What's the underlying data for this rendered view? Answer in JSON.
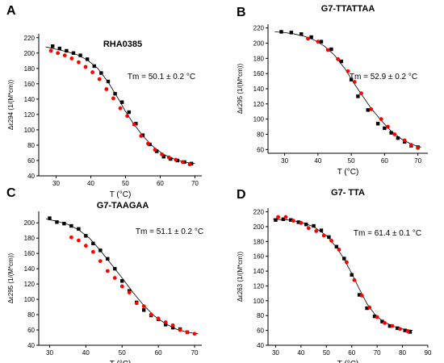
{
  "chart_data": [
    {
      "panel": "A",
      "type": "scatter",
      "title": "RHA0385",
      "xlabel": "T (°C)",
      "ylabel": "Δε294 (1/(M*cm))",
      "annotation": "Tm = 50.1 ± 0.2 °C",
      "xlim": [
        25,
        72
      ],
      "ylim": [
        40,
        225
      ],
      "xticks": [
        30,
        40,
        50,
        60,
        70
      ],
      "yticks": [
        40,
        60,
        80,
        100,
        120,
        140,
        160,
        180,
        200,
        220
      ],
      "series": [
        {
          "color": "#000000",
          "marker": "square",
          "x": [
            29,
            31,
            33,
            35,
            37,
            39,
            41,
            43,
            45,
            47,
            49,
            51,
            53,
            55,
            57,
            59,
            61,
            63,
            65,
            67,
            69
          ],
          "y": [
            209,
            206,
            203,
            200,
            197,
            192,
            183,
            174,
            163,
            147,
            136,
            123,
            108,
            93,
            81,
            72,
            65,
            62,
            60,
            58,
            56
          ]
        },
        {
          "color": "#ff0000",
          "marker": "circle",
          "x": [
            28.5,
            30.5,
            32.5,
            34.5,
            36.5,
            38.5,
            40.5,
            42.5,
            44.5,
            46.5,
            48.5,
            50.5,
            52.5,
            54.5,
            56.5,
            58.5,
            60.5,
            62.5,
            64.5,
            66.5,
            68.5
          ],
          "y": [
            203,
            200,
            197,
            193,
            188,
            182,
            175,
            166,
            153,
            141,
            128,
            118,
            107,
            92,
            82,
            74,
            68,
            64,
            61,
            58,
            55
          ]
        },
        {
          "color": "#000000",
          "marker": "line",
          "x": [
            27,
            30,
            33,
            36,
            39,
            42,
            45,
            48,
            50,
            52,
            55,
            58,
            61,
            64,
            67,
            70
          ],
          "y": [
            208,
            205,
            202,
            198,
            191,
            180,
            162,
            140,
            124,
            110,
            92,
            78,
            68,
            62,
            58,
            56
          ]
        }
      ]
    },
    {
      "panel": "B",
      "type": "scatter",
      "title": "G7-TTATTAA",
      "xlabel": "T (°C)",
      "ylabel": "Δε295 (1/(M*cm))",
      "annotation": "Tm = 52.9 ± 0.2 °C",
      "xlim": [
        25,
        73
      ],
      "ylim": [
        55,
        225
      ],
      "xticks": [
        30,
        40,
        50,
        60,
        70
      ],
      "yticks": [
        60,
        80,
        100,
        120,
        140,
        160,
        180,
        200,
        220
      ],
      "series": [
        {
          "color": "#000000",
          "marker": "square",
          "x": [
            29,
            32,
            35,
            38,
            41,
            44,
            47,
            50,
            52,
            55,
            58,
            60,
            62,
            64,
            66,
            68,
            70
          ],
          "y": [
            215,
            214,
            212,
            208,
            202,
            192,
            176,
            152,
            130,
            112,
            94,
            88,
            82,
            75,
            70,
            65,
            63
          ]
        },
        {
          "color": "#ff0000",
          "marker": "circle",
          "x": [
            37,
            40,
            43,
            46,
            49,
            51,
            53,
            56,
            59,
            61,
            63,
            66,
            68,
            70
          ],
          "y": [
            206,
            202,
            191,
            179,
            163,
            149,
            134,
            113,
            100,
            90,
            80,
            72,
            66,
            62
          ]
        },
        {
          "color": "#000000",
          "marker": "line",
          "x": [
            27,
            30,
            33,
            36,
            39,
            42,
            45,
            48,
            51,
            53,
            56,
            59,
            62,
            65,
            68,
            71
          ],
          "y": [
            215,
            214,
            212,
            209,
            204,
            196,
            184,
            167,
            146,
            133,
            114,
            98,
            84,
            74,
            67,
            63
          ]
        }
      ]
    },
    {
      "panel": "C",
      "type": "scatter",
      "title": "G7-TAAGAA",
      "xlabel": "T (°C)",
      "ylabel": "Δε295 (1/(M*cm))",
      "annotation": "Tm = 51.1 ± 0.2 °C",
      "xlim": [
        27,
        72
      ],
      "ylim": [
        40,
        215
      ],
      "xticks": [
        30,
        40,
        50,
        60,
        70
      ],
      "yticks": [
        40,
        60,
        80,
        100,
        120,
        140,
        160,
        180,
        200
      ],
      "series": [
        {
          "color": "#000000",
          "marker": "square",
          "x": [
            30,
            32,
            34,
            36,
            38,
            40,
            42,
            44,
            46,
            48,
            50,
            52,
            54,
            56,
            58,
            60,
            62,
            64,
            66,
            68
          ],
          "y": [
            206,
            201,
            199,
            196,
            192,
            183,
            173,
            164,
            153,
            140,
            124,
            111,
            96,
            86,
            79,
            74,
            67,
            63,
            61,
            57
          ]
        },
        {
          "color": "#ff0000",
          "marker": "circle",
          "x": [
            36,
            38,
            40,
            42,
            44,
            46,
            48,
            50,
            52,
            54,
            56,
            58,
            60,
            62,
            64,
            66,
            68,
            70
          ],
          "y": [
            181,
            177,
            170,
            162,
            150,
            137,
            128,
            117,
            109,
            95,
            91,
            80,
            75,
            70,
            66,
            60,
            57,
            55
          ]
        },
        {
          "color": "#000000",
          "marker": "line",
          "x": [
            29,
            32,
            35,
            38,
            41,
            44,
            47,
            50,
            53,
            56,
            59,
            62,
            65,
            68,
            71
          ],
          "y": [
            205,
            202,
            198,
            191,
            180,
            164,
            146,
            128,
            109,
            92,
            78,
            68,
            61,
            57,
            55
          ]
        }
      ]
    },
    {
      "panel": "D",
      "type": "scatter",
      "title": "G7- TTA",
      "xlabel": "T (°C)",
      "ylabel": "Δε263 (1/(M*cm))",
      "annotation": "Tm = 61.4 ± 0.1 °C",
      "xlim": [
        27,
        90
      ],
      "ylim": [
        40,
        225
      ],
      "xticks": [
        30,
        40,
        50,
        60,
        70,
        80,
        90
      ],
      "yticks": [
        40,
        60,
        80,
        100,
        120,
        140,
        160,
        180,
        200,
        220
      ],
      "series": [
        {
          "color": "#000000",
          "marker": "square",
          "x": [
            30,
            33,
            36,
            39,
            42,
            45,
            48,
            51,
            54,
            57,
            60,
            63,
            66,
            69,
            72,
            75,
            78,
            81,
            83
          ],
          "y": [
            209,
            210,
            209,
            206,
            203,
            201,
            195,
            186,
            173,
            157,
            135,
            108,
            90,
            79,
            72,
            66,
            63,
            60,
            58
          ]
        },
        {
          "color": "#ff0000",
          "marker": "circle",
          "x": [
            31,
            34,
            37,
            40,
            43,
            46,
            49,
            52,
            55,
            58,
            61,
            64,
            67,
            70,
            73,
            76,
            79,
            82
          ],
          "y": [
            213,
            213,
            208,
            205,
            198,
            194,
            188,
            181,
            169,
            152,
            128,
            107,
            91,
            78,
            70,
            66,
            62,
            59
          ]
        },
        {
          "color": "#000000",
          "marker": "line",
          "x": [
            29,
            35,
            40,
            45,
            50,
            54,
            57,
            60,
            63,
            66,
            69,
            72,
            76,
            80,
            84
          ],
          "y": [
            210,
            209,
            206,
            200,
            188,
            172,
            156,
            137,
            116,
            96,
            82,
            73,
            66,
            62,
            60
          ]
        }
      ]
    }
  ]
}
